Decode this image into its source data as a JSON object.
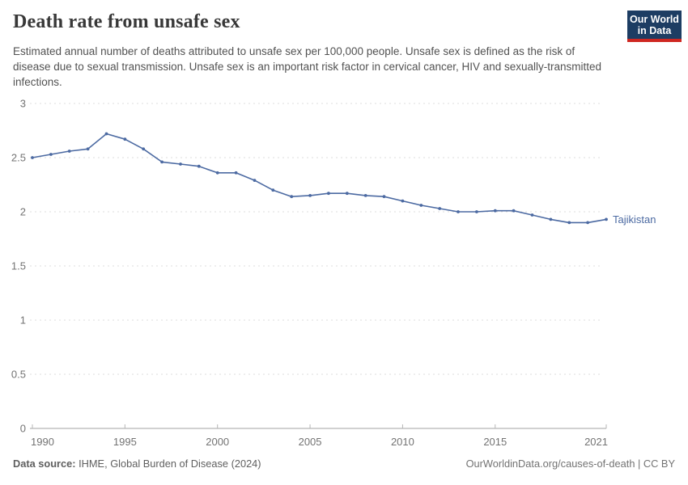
{
  "header": {
    "title": "Death rate from unsafe sex",
    "subtitle": "Estimated annual number of deaths attributed to unsafe sex per 100,000 people. Unsafe sex is defined as the risk of disease due to sexual transmission. Unsafe sex is an important risk factor in cervical cancer, HIV and sexually-transmitted infections.",
    "logo": {
      "line1": "Our World",
      "line2": "in Data",
      "bg_color": "#1d3d63",
      "bar_color": "#cf2721"
    }
  },
  "chart_data": {
    "type": "line",
    "title": "Death rate from unsafe sex",
    "xlabel": "",
    "ylabel": "",
    "xlim": [
      1990,
      2021
    ],
    "ylim": [
      0,
      3
    ],
    "x_ticks": [
      1990,
      1995,
      2000,
      2005,
      2010,
      2015,
      2021
    ],
    "y_ticks": [
      0,
      0.5,
      1,
      1.5,
      2,
      2.5,
      3
    ],
    "grid": "horizontal-dashed",
    "legend_position": "end-of-line-label",
    "colors": {
      "line": "#4C6AA2",
      "grid": "#dcdcdc",
      "axis": "#a3a3a3",
      "tick": "#b5b5b5",
      "tick_label": "#737373"
    },
    "series": [
      {
        "name": "Tajikistan",
        "color": "#4C6AA2",
        "x": [
          1990,
          1991,
          1992,
          1993,
          1994,
          1995,
          1996,
          1997,
          1998,
          1999,
          2000,
          2001,
          2002,
          2003,
          2004,
          2005,
          2006,
          2007,
          2008,
          2009,
          2010,
          2011,
          2012,
          2013,
          2014,
          2015,
          2016,
          2017,
          2018,
          2019,
          2020,
          2021
        ],
        "values": [
          2.5,
          2.53,
          2.56,
          2.58,
          2.72,
          2.67,
          2.58,
          2.46,
          2.44,
          2.42,
          2.36,
          2.36,
          2.29,
          2.2,
          2.14,
          2.15,
          2.17,
          2.17,
          2.15,
          2.14,
          2.1,
          2.06,
          2.03,
          2.0,
          2.0,
          2.01,
          2.01,
          1.97,
          1.93,
          1.9,
          1.9,
          1.93
        ]
      }
    ],
    "end_label": "Tajikistan"
  },
  "footer": {
    "source_label": "Data source:",
    "source_text": " IHME, Global Burden of Disease (2024)",
    "credit": "OurWorldinData.org/causes-of-death | CC BY"
  }
}
